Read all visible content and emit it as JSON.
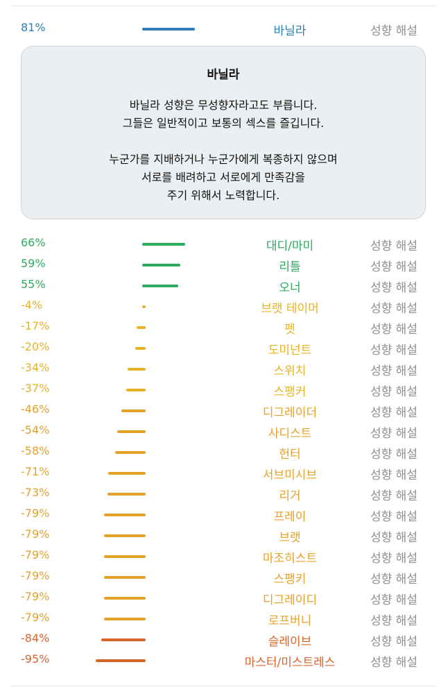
{
  "explain_label": "성향 해설",
  "top_item": {
    "percent": "81%",
    "value": 81,
    "name": "바닐라",
    "color": "#2e7db4"
  },
  "description": {
    "title": "바닐라",
    "lines": [
      "바닐라 성향은 무성향자라고도 부릅니다.",
      "그들은 일반적이고 보통의 섹스를 즐깁니다.",
      "",
      "누군가를 지배하거나 누군가에게 복종하지 않으며",
      "서로를 배려하고 서로에게 만족감을",
      "주기 위해서 노력합니다."
    ]
  },
  "items": [
    {
      "percent": "66%",
      "value": 66,
      "name": "대디/마미",
      "color": "#2eaa5f"
    },
    {
      "percent": "59%",
      "value": 59,
      "name": "리틀",
      "color": "#2eaa5f"
    },
    {
      "percent": "55%",
      "value": 55,
      "name": "오너",
      "color": "#2eaa5f"
    },
    {
      "percent": "-4%",
      "value": -4,
      "name": "브랫 테이머",
      "color": "#e8b322"
    },
    {
      "percent": "-17%",
      "value": -17,
      "name": "펫",
      "color": "#e8b322"
    },
    {
      "percent": "-20%",
      "value": -20,
      "name": "도미넌트",
      "color": "#e8b322"
    },
    {
      "percent": "-34%",
      "value": -34,
      "name": "스위치",
      "color": "#e8b322"
    },
    {
      "percent": "-37%",
      "value": -37,
      "name": "스팽커",
      "color": "#e8b322"
    },
    {
      "percent": "-46%",
      "value": -46,
      "name": "디그레이더",
      "color": "#e6a12a"
    },
    {
      "percent": "-54%",
      "value": -54,
      "name": "사디스트",
      "color": "#e6a12a"
    },
    {
      "percent": "-58%",
      "value": -58,
      "name": "헌터",
      "color": "#e6a12a"
    },
    {
      "percent": "-71%",
      "value": -71,
      "name": "서브미시브",
      "color": "#e6a12a"
    },
    {
      "percent": "-73%",
      "value": -73,
      "name": "리거",
      "color": "#e6a12a"
    },
    {
      "percent": "-79%",
      "value": -79,
      "name": "프레이",
      "color": "#e6a12a"
    },
    {
      "percent": "-79%",
      "value": -79,
      "name": "브랫",
      "color": "#e6a12a"
    },
    {
      "percent": "-79%",
      "value": -79,
      "name": "마조히스트",
      "color": "#e6a12a"
    },
    {
      "percent": "-79%",
      "value": -79,
      "name": "스팽키",
      "color": "#e6a12a"
    },
    {
      "percent": "-79%",
      "value": -79,
      "name": "디그레이디",
      "color": "#e6a12a"
    },
    {
      "percent": "-79%",
      "value": -79,
      "name": "로프버니",
      "color": "#e6a12a"
    },
    {
      "percent": "-84%",
      "value": -84,
      "name": "슬레이브",
      "color": "#d9642b"
    },
    {
      "percent": "-95%",
      "value": -95,
      "name": "마스터/미스트레스",
      "color": "#d9642b"
    }
  ]
}
